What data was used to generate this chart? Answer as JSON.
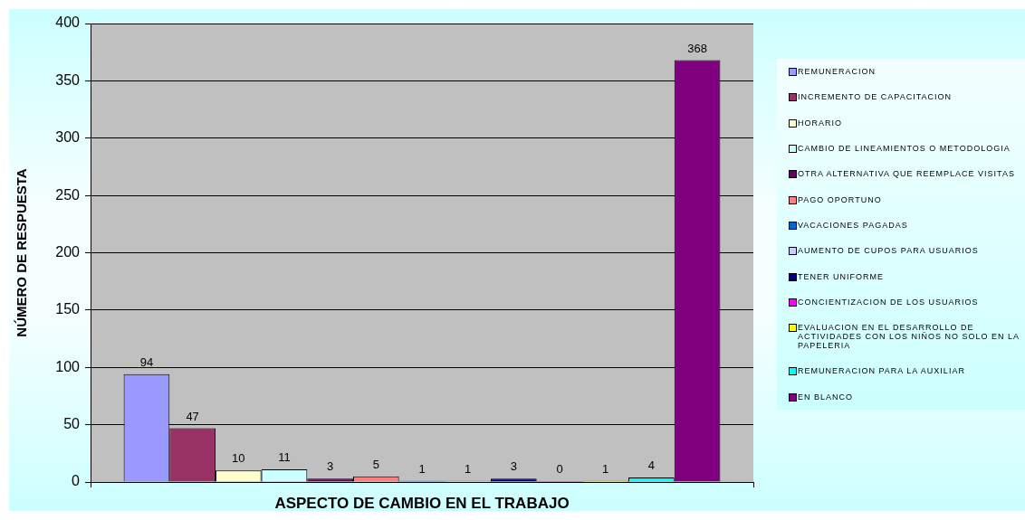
{
  "chart_data": {
    "type": "bar",
    "xlabel": "ASPECTO DE CAMBIO EN EL TRABAJO",
    "ylabel": "NÚMERO DE RESPUESTA",
    "categories": [
      null
    ],
    "series": [
      {
        "name": "REMUNERACION",
        "color": "#9999ff",
        "values": [
          94
        ]
      },
      {
        "name": "INCREMENTO DE CAPACITACION",
        "color": "#993366",
        "values": [
          47
        ]
      },
      {
        "name": "HORARIO",
        "color": "#ffffcc",
        "values": [
          10
        ]
      },
      {
        "name": "CAMBIO DE LINEAMIENTOS O METODOLOGIA",
        "color": "#ccffff",
        "values": [
          11
        ]
      },
      {
        "name": "OTRA ALTERNATIVA QUE REEMPLACE VISITAS",
        "color": "#660066",
        "values": [
          3
        ]
      },
      {
        "name": "PAGO OPORTUNO",
        "color": "#ff8080",
        "values": [
          5
        ]
      },
      {
        "name": "VACACIONES PAGADAS",
        "color": "#0066cc",
        "values": [
          1
        ]
      },
      {
        "name": "AUMENTO DE CUPOS PARA USUARIOS",
        "color": "#ccccff",
        "values": [
          1
        ]
      },
      {
        "name": "TENER UNIFORME",
        "color": "#000080",
        "values": [
          3
        ]
      },
      {
        "name": "CONCIENTIZACION DE LOS USUARIOS",
        "color": "#ff00ff",
        "values": [
          0
        ]
      },
      {
        "name": "EVALUACION EN EL DESARROLLO DE ACTIVIDADES CON LOS NIÑOS NO SOLO EN LA PAPELERIA",
        "color": "#ffff00",
        "values": [
          1
        ]
      },
      {
        "name": "REMUNERACION PARA LA AUXILIAR",
        "color": "#00ffff",
        "values": [
          4
        ]
      },
      {
        "name": "EN BLANCO",
        "color": "#800080",
        "values": [
          368
        ]
      }
    ],
    "ylim": [
      0,
      400
    ],
    "yticks": [
      0,
      50,
      100,
      150,
      200,
      250,
      300,
      350,
      400
    ],
    "grid": "y",
    "legend": "right",
    "data_labels": true
  }
}
